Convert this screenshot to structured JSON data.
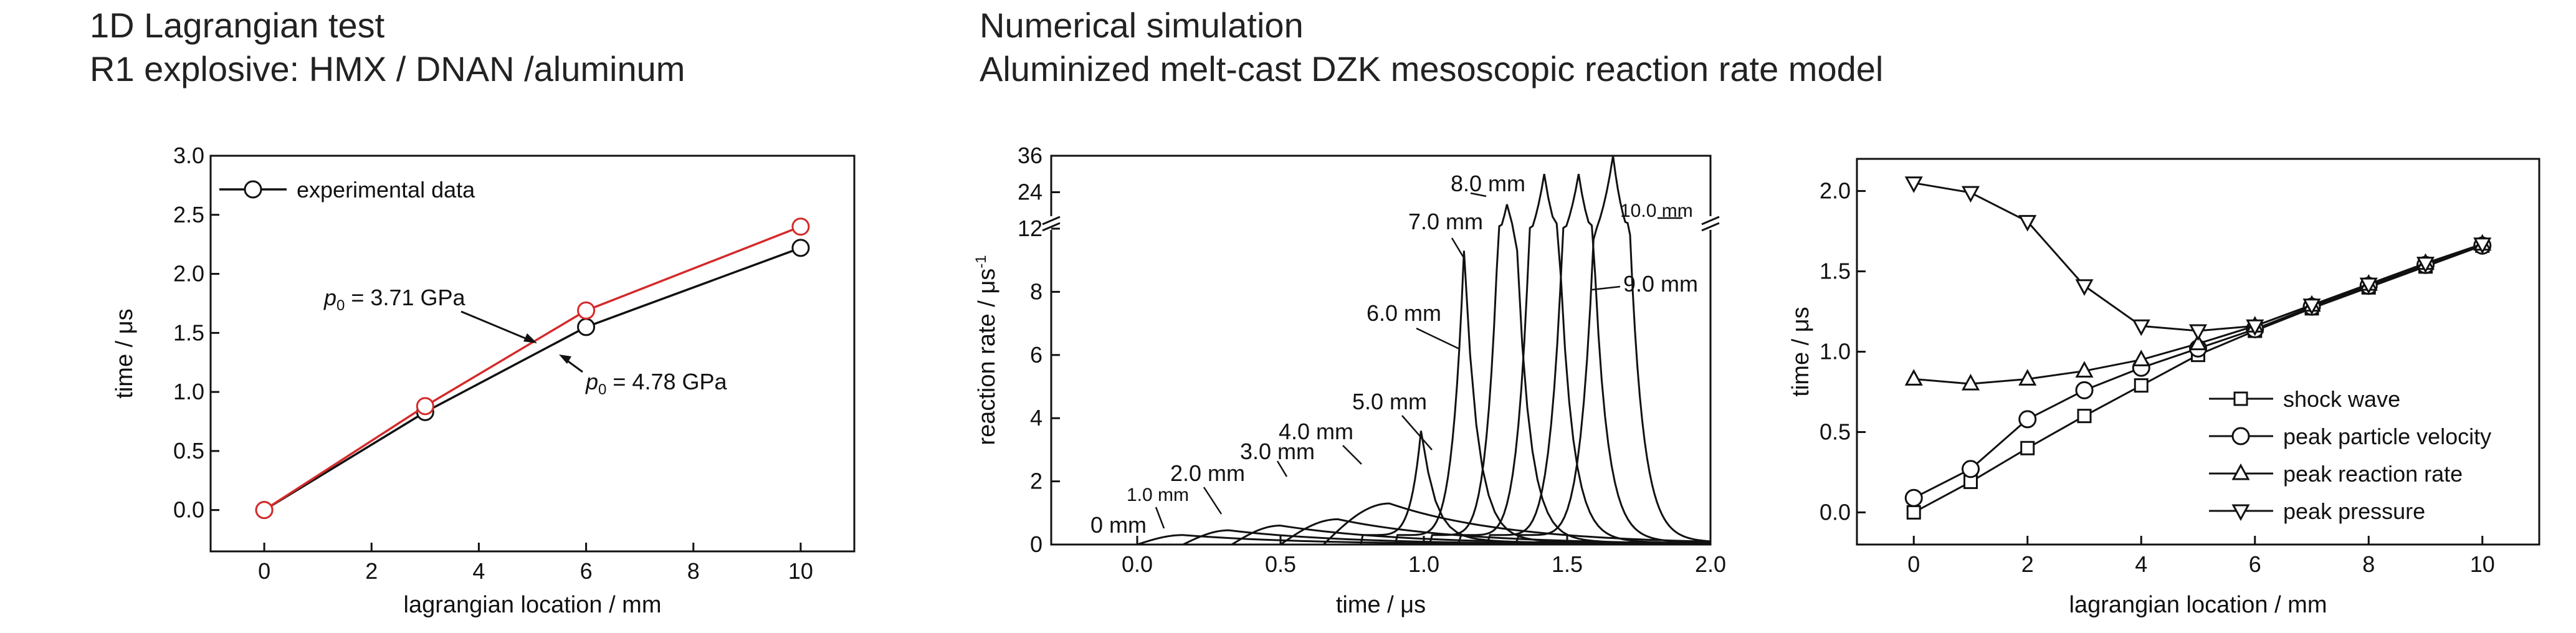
{
  "header_left": {
    "line1": "1D Lagrangian test",
    "line2": "R1 explosive: HMX / DNAN /aluminum"
  },
  "header_mid": {
    "line1": "Numerical simulation",
    "line2": "Aluminized melt-cast DZK mesoscopic reaction rate model"
  },
  "colors": {
    "ink": "#111111",
    "accent_red": "#d42a2a"
  },
  "chart_data": [
    {
      "type": "line",
      "title": "",
      "xlabel": "lagrangian location / mm",
      "ylabel": "time / μs",
      "xlim": [
        -1,
        11
      ],
      "ylim": [
        -0.35,
        3.0
      ],
      "xticks": [
        0,
        2,
        4,
        6,
        8,
        10
      ],
      "yticks": [
        0.0,
        0.5,
        1.0,
        1.5,
        2.0,
        2.5,
        3.0
      ],
      "grid": false,
      "legend": {
        "position": "top-left",
        "entries": [
          "experimental data"
        ]
      },
      "series": [
        {
          "name": "experimental data",
          "color": "#111111",
          "marker": "circle",
          "x": [
            0,
            3,
            6,
            10
          ],
          "y": [
            0.0,
            0.83,
            1.55,
            2.22
          ]
        },
        {
          "color": "#d42a2a",
          "marker": "circle",
          "x": [
            0,
            3,
            6,
            10
          ],
          "y": [
            0.0,
            0.88,
            1.69,
            2.4
          ]
        }
      ],
      "annotations": [
        {
          "prefix": "p",
          "sub": "0",
          "text": " = 3.71 GPa"
        },
        {
          "prefix": "p",
          "sub": "0",
          "text": " = 4.78 GPa"
        }
      ]
    },
    {
      "type": "line",
      "title": "",
      "xlabel": "time / μs",
      "ylabel": "reaction rate / μs",
      "ylabel_sup": "-1",
      "xlim": [
        -0.3,
        2.0
      ],
      "ylim": [
        0,
        36
      ],
      "y_axis_break": {
        "lower_range": [
          0,
          10
        ],
        "upper_ticks": [
          12,
          24,
          36
        ]
      },
      "xticks": [
        0.0,
        0.5,
        1.0,
        1.5,
        2.0
      ],
      "yticks": [
        0,
        2,
        4,
        6,
        8,
        12,
        24,
        36
      ],
      "grid": false,
      "series": [
        {
          "label": "0 mm",
          "start": 0.0,
          "peak_t": 0.16,
          "peak_v": 0.3
        },
        {
          "label": "1.0 mm",
          "start": 0.16,
          "peak_t": 0.32,
          "peak_v": 0.45
        },
        {
          "label": "2.0 mm",
          "start": 0.33,
          "peak_t": 0.5,
          "peak_v": 0.6
        },
        {
          "label": "3.0 mm",
          "start": 0.5,
          "peak_t": 0.7,
          "peak_v": 0.8
        },
        {
          "label": "4.0 mm",
          "start": 0.65,
          "peak_t": 0.88,
          "peak_v": 1.3
        },
        {
          "label": "5.0 mm",
          "start": 0.78,
          "peak_t": 0.99,
          "peak_v": 3.6
        },
        {
          "label": "6.0 mm",
          "start": 0.9,
          "peak_t": 1.14,
          "peak_v": 9.3
        },
        {
          "label": "7.0 mm",
          "start": 1.02,
          "peak_t": 1.29,
          "peak_v": 20
        },
        {
          "label": "8.0 mm",
          "start": 1.12,
          "peak_t": 1.42,
          "peak_v": 30
        },
        {
          "label": "9.0 mm",
          "start": 1.22,
          "peak_t": 1.54,
          "peak_v": 30
        },
        {
          "label": "10.0 mm",
          "start": 1.32,
          "peak_t": 1.66,
          "peak_v": 36
        }
      ]
    },
    {
      "type": "line",
      "title": "",
      "xlabel": "lagrangian location / mm",
      "ylabel": "time / μs",
      "xlim": [
        -1,
        11
      ],
      "ylim": [
        -0.2,
        2.2
      ],
      "xticks": [
        0,
        2,
        4,
        6,
        8,
        10
      ],
      "yticks": [
        0.0,
        0.5,
        1.0,
        1.5,
        2.0
      ],
      "grid": false,
      "legend": {
        "position": "lower-right",
        "entries": [
          "shock wave",
          "peak particle velocity",
          "peak reaction rate",
          "peak pressure"
        ]
      },
      "x": [
        0,
        1,
        2,
        3,
        4,
        5,
        6,
        7,
        8,
        9,
        10
      ],
      "series": [
        {
          "name": "shock wave",
          "marker": "square",
          "values": [
            0.0,
            0.19,
            0.4,
            0.6,
            0.79,
            0.98,
            1.13,
            1.27,
            1.4,
            1.53,
            1.66
          ]
        },
        {
          "name": "peak particle velocity",
          "marker": "circle",
          "values": [
            0.09,
            0.27,
            0.58,
            0.76,
            0.9,
            1.02,
            1.14,
            1.28,
            1.41,
            1.54,
            1.66
          ]
        },
        {
          "name": "peak reaction rate",
          "marker": "triangle-up",
          "values": [
            0.83,
            0.8,
            0.83,
            0.88,
            0.95,
            1.05,
            1.16,
            1.29,
            1.42,
            1.55,
            1.67
          ]
        },
        {
          "name": "peak pressure",
          "marker": "triangle-down",
          "values": [
            2.05,
            1.99,
            1.81,
            1.41,
            1.16,
            1.13,
            1.16,
            1.29,
            1.42,
            1.55,
            1.67
          ]
        }
      ]
    }
  ]
}
